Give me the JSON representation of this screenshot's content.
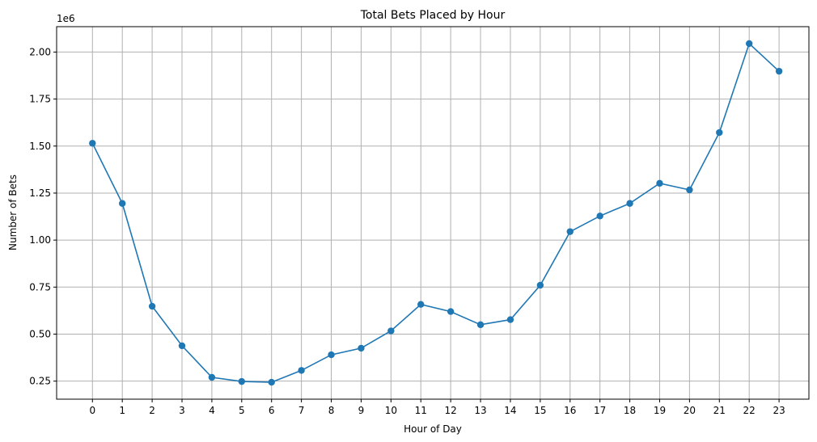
{
  "chart_data": {
    "type": "line",
    "title": "Total Bets Placed by Hour",
    "xlabel": "Hour of Day",
    "ylabel": "Number of Bets",
    "y_offset_label": "1e6",
    "x": [
      0,
      1,
      2,
      3,
      4,
      5,
      6,
      7,
      8,
      9,
      10,
      11,
      12,
      13,
      14,
      15,
      16,
      17,
      18,
      19,
      20,
      21,
      22,
      23
    ],
    "series": [
      {
        "values": [
          1515000,
          1195000,
          648000,
          438000,
          270000,
          248000,
          244000,
          307000,
          390000,
          425000,
          517000,
          658000,
          620000,
          550000,
          577000,
          760000,
          1045000,
          1128000,
          1195000,
          1302000,
          1267000,
          1572000,
          2045000,
          1898000
        ],
        "color": "#1f77b4",
        "marker": "circle"
      }
    ],
    "xlim": [
      -1.2,
      24.0
    ],
    "ylim": [
      154000,
      2135000
    ],
    "y_ticks": [
      250000,
      500000,
      750000,
      1000000,
      1250000,
      1500000,
      1750000,
      2000000
    ],
    "y_tick_labels": [
      "0.25",
      "0.50",
      "0.75",
      "1.00",
      "1.25",
      "1.50",
      "1.75",
      "2.00"
    ],
    "x_ticks": [
      0,
      1,
      2,
      3,
      4,
      5,
      6,
      7,
      8,
      9,
      10,
      11,
      12,
      13,
      14,
      15,
      16,
      17,
      18,
      19,
      20,
      21,
      22,
      23
    ],
    "x_tick_labels": [
      "0",
      "1",
      "2",
      "3",
      "4",
      "5",
      "6",
      "7",
      "8",
      "9",
      "10",
      "11",
      "12",
      "13",
      "14",
      "15",
      "16",
      "17",
      "18",
      "19",
      "20",
      "21",
      "22",
      "23"
    ],
    "grid": true,
    "grid_color": "#b0b0b0",
    "legend": "none"
  }
}
